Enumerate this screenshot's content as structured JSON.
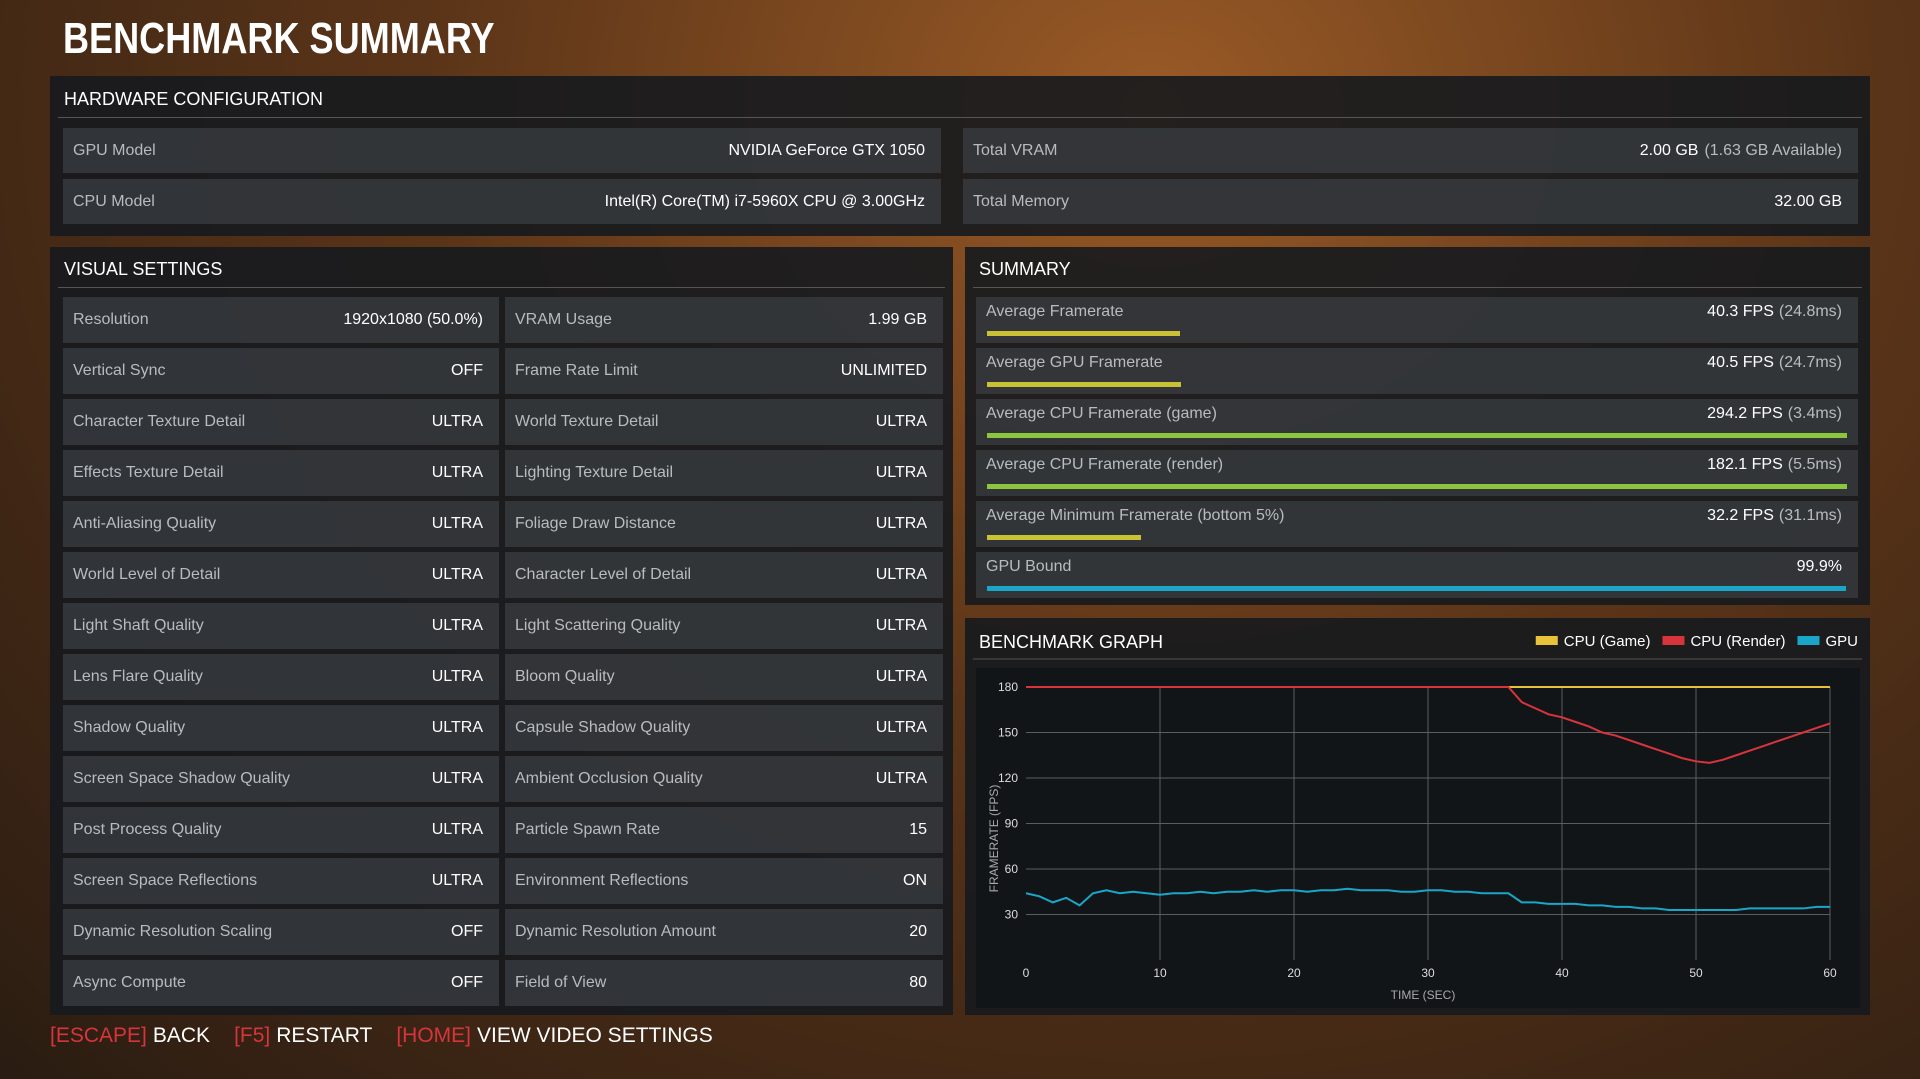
{
  "title": "BENCHMARK SUMMARY",
  "hardware": {
    "title": "HARDWARE CONFIGURATION",
    "rows": [
      [
        {
          "label": "GPU Model",
          "value": "NVIDIA GeForce GTX 1050"
        },
        {
          "label": "Total VRAM",
          "value": "2.00 GB",
          "note": "(1.63 GB Available)"
        }
      ],
      [
        {
          "label": "CPU Model",
          "value": "Intel(R) Core(TM) i7-5960X CPU @ 3.00GHz"
        },
        {
          "label": "Total Memory",
          "value": "32.00 GB"
        }
      ]
    ]
  },
  "visual_settings": {
    "title": "VISUAL SETTINGS",
    "rows": [
      [
        [
          "Resolution",
          "1920x1080 (50.0%)"
        ],
        [
          "VRAM Usage",
          "1.99 GB"
        ]
      ],
      [
        [
          "Vertical Sync",
          "OFF"
        ],
        [
          "Frame Rate Limit",
          "UNLIMITED"
        ]
      ],
      [
        [
          "Character Texture Detail",
          "ULTRA"
        ],
        [
          "World Texture Detail",
          "ULTRA"
        ]
      ],
      [
        [
          "Effects Texture Detail",
          "ULTRA"
        ],
        [
          "Lighting Texture Detail",
          "ULTRA"
        ]
      ],
      [
        [
          "Anti-Aliasing Quality",
          "ULTRA"
        ],
        [
          "Foliage Draw Distance",
          "ULTRA"
        ]
      ],
      [
        [
          "World Level of Detail",
          "ULTRA"
        ],
        [
          "Character Level of Detail",
          "ULTRA"
        ]
      ],
      [
        [
          "Light Shaft Quality",
          "ULTRA"
        ],
        [
          "Light Scattering Quality",
          "ULTRA"
        ]
      ],
      [
        [
          "Lens Flare Quality",
          "ULTRA"
        ],
        [
          "Bloom Quality",
          "ULTRA"
        ]
      ],
      [
        [
          "Shadow Quality",
          "ULTRA"
        ],
        [
          "Capsule Shadow Quality",
          "ULTRA"
        ]
      ],
      [
        [
          "Screen Space Shadow Quality",
          "ULTRA"
        ],
        [
          "Ambient Occlusion Quality",
          "ULTRA"
        ]
      ],
      [
        [
          "Post Process Quality",
          "ULTRA"
        ],
        [
          "Particle Spawn Rate",
          "15"
        ]
      ],
      [
        [
          "Screen Space Reflections",
          "ULTRA"
        ],
        [
          "Environment Reflections",
          "ON"
        ]
      ],
      [
        [
          "Dynamic Resolution Scaling",
          "OFF"
        ],
        [
          "Dynamic Resolution Amount",
          "20"
        ]
      ],
      [
        [
          "Async Compute",
          "OFF"
        ],
        [
          "Field of View",
          "80"
        ]
      ]
    ]
  },
  "summary": {
    "title": "SUMMARY",
    "rows": [
      {
        "label": "Average Framerate",
        "value": 40.3,
        "value_label": "40.3 FPS",
        "ms_label": "(24.8ms)",
        "color": "#c9c234"
      },
      {
        "label": "Average GPU Framerate",
        "value": 40.5,
        "value_label": "40.5 FPS",
        "ms_label": "(24.7ms)",
        "color": "#c9c234"
      },
      {
        "label": "Average CPU Framerate (game)",
        "value": 294.2,
        "value_label": "294.2 FPS",
        "ms_label": "(3.4ms)",
        "color": "#8cc63e"
      },
      {
        "label": "Average CPU Framerate (render)",
        "value": 182.1,
        "value_label": "182.1 FPS",
        "ms_label": "(5.5ms)",
        "color": "#8cc63e"
      },
      {
        "label": "Average Minimum Framerate (bottom 5%)",
        "value": 32.2,
        "value_label": "32.2 FPS",
        "ms_label": "(31.1ms)",
        "color": "#c9c234"
      },
      {
        "label": "GPU Bound",
        "value": 99.9,
        "value_label": "99.9%",
        "color": "#1aa6c8",
        "percent": true
      }
    ]
  },
  "chart_data": {
    "type": "line",
    "title": "BENCHMARK GRAPH",
    "x_label": "TIME (SEC)",
    "y_label": "FRAMERATE (FPS)",
    "legend": "top-right",
    "grid": true,
    "xlim": [
      0,
      60
    ],
    "xticks": [
      0,
      10,
      20,
      30,
      40,
      50,
      60
    ],
    "ylim": [
      0,
      180
    ],
    "yticks": [
      30,
      60,
      90,
      120,
      150,
      180
    ],
    "x": [
      0,
      1,
      2,
      3,
      4,
      5,
      6,
      7,
      8,
      9,
      10,
      11,
      12,
      13,
      14,
      15,
      16,
      17,
      18,
      19,
      20,
      21,
      22,
      23,
      24,
      25,
      26,
      27,
      28,
      29,
      30,
      31,
      32,
      33,
      34,
      35,
      36,
      37,
      38,
      39,
      40,
      41,
      42,
      43,
      44,
      45,
      46,
      47,
      48,
      49,
      50,
      51,
      52,
      53,
      54,
      55,
      56,
      57,
      58,
      59,
      60
    ],
    "series": [
      {
        "name": "CPU (Game)",
        "color": "#e8c33a",
        "values": [
          180,
          180,
          180,
          180,
          180,
          180,
          180,
          180,
          180,
          180,
          180,
          180,
          180,
          180,
          180,
          180,
          180,
          180,
          180,
          180,
          180,
          180,
          180,
          180,
          180,
          180,
          180,
          180,
          180,
          180,
          180,
          180,
          180,
          180,
          180,
          180,
          180,
          180,
          180,
          180,
          180,
          180,
          180,
          180,
          180,
          180,
          180,
          180,
          180,
          180,
          180,
          180,
          180,
          180,
          180,
          180,
          180,
          180,
          180,
          180,
          180
        ]
      },
      {
        "name": "CPU (Render)",
        "color": "#d8343c",
        "values": [
          180,
          180,
          180,
          180,
          180,
          180,
          180,
          180,
          180,
          180,
          180,
          180,
          180,
          180,
          180,
          180,
          180,
          180,
          180,
          180,
          180,
          180,
          180,
          180,
          180,
          180,
          180,
          180,
          180,
          180,
          180,
          180,
          180,
          180,
          180,
          180,
          180,
          170,
          166,
          162,
          160,
          157,
          154,
          150,
          148,
          145,
          142,
          139,
          136,
          133,
          131,
          130,
          132,
          135,
          138,
          141,
          144,
          147,
          150,
          153,
          156
        ]
      },
      {
        "name": "GPU",
        "color": "#1aa6c8",
        "values": [
          44,
          42,
          38,
          41,
          36,
          44,
          46,
          44,
          45,
          44,
          43,
          44,
          44,
          45,
          44,
          45,
          45,
          46,
          45,
          46,
          46,
          45,
          46,
          46,
          47,
          46,
          46,
          46,
          45,
          45,
          46,
          46,
          45,
          45,
          44,
          44,
          44,
          38,
          38,
          37,
          37,
          37,
          36,
          36,
          35,
          35,
          34,
          34,
          33,
          33,
          33,
          33,
          33,
          33,
          34,
          34,
          34,
          34,
          34,
          35,
          35
        ]
      }
    ]
  },
  "footer": {
    "items": [
      {
        "key": "[ESCAPE]",
        "action": "BACK"
      },
      {
        "key": "[F5]",
        "action": "RESTART"
      },
      {
        "key": "[HOME]",
        "action": "VIEW VIDEO SETTINGS"
      }
    ]
  }
}
